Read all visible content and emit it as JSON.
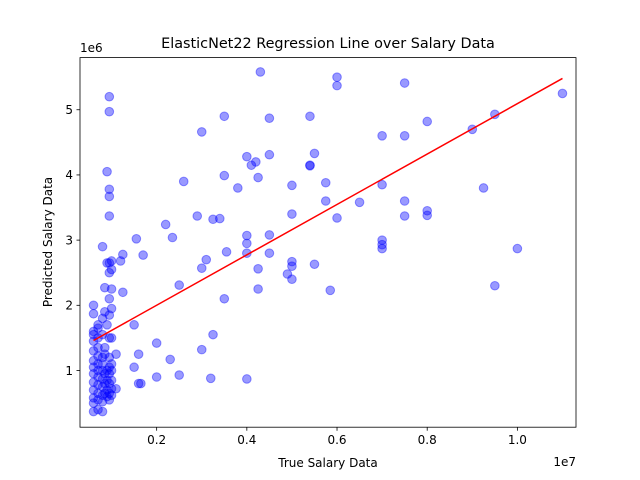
{
  "chart_data": {
    "type": "scatter",
    "title": "ElasticNet22 Regression Line over Salary Data",
    "xlabel": "True Salary Data",
    "ylabel": "Predicted Salary Data",
    "x_offset_label": "1e7",
    "y_offset_label": "1e6",
    "xlim": [
      0.03,
      1.13
    ],
    "ylim": [
      0.13,
      5.8
    ],
    "x_unit_note": "x values in units of 1e7",
    "y_unit_note": "y values in units of 1e6",
    "xticks": [
      0.2,
      0.4,
      0.6,
      0.8,
      1.0
    ],
    "xtick_labels": [
      "0.2",
      "0.4",
      "0.6",
      "0.8",
      "1.0"
    ],
    "yticks": [
      1,
      2,
      3,
      4,
      5
    ],
    "ytick_labels": [
      "1",
      "2",
      "3",
      "4",
      "5"
    ],
    "grid": false,
    "scatter_color": "#0000ff",
    "scatter_alpha": 0.4,
    "line_color": "#ff0000",
    "regression_line": {
      "x": [
        0.06,
        1.1
      ],
      "y": [
        1.46,
        5.48
      ]
    },
    "points": [
      [
        0.06,
        0.37
      ],
      [
        0.06,
        0.5
      ],
      [
        0.06,
        0.58
      ],
      [
        0.06,
        0.7
      ],
      [
        0.06,
        0.82
      ],
      [
        0.06,
        0.95
      ],
      [
        0.06,
        1.05
      ],
      [
        0.06,
        1.15
      ],
      [
        0.06,
        1.3
      ],
      [
        0.06,
        1.45
      ],
      [
        0.06,
        1.55
      ],
      [
        0.06,
        1.6
      ],
      [
        0.06,
        1.87
      ],
      [
        0.06,
        2.0
      ],
      [
        0.07,
        0.4
      ],
      [
        0.07,
        0.55
      ],
      [
        0.07,
        0.65
      ],
      [
        0.07,
        0.78
      ],
      [
        0.07,
        0.9
      ],
      [
        0.07,
        1.0
      ],
      [
        0.07,
        1.1
      ],
      [
        0.07,
        1.22
      ],
      [
        0.07,
        1.35
      ],
      [
        0.07,
        1.5
      ],
      [
        0.07,
        1.65
      ],
      [
        0.07,
        1.7
      ],
      [
        0.08,
        0.37
      ],
      [
        0.08,
        0.52
      ],
      [
        0.08,
        0.62
      ],
      [
        0.08,
        0.75
      ],
      [
        0.08,
        0.87
      ],
      [
        0.08,
        1.0
      ],
      [
        0.08,
        1.1
      ],
      [
        0.08,
        1.2
      ],
      [
        0.08,
        1.55
      ],
      [
        0.08,
        1.8
      ],
      [
        0.08,
        2.9
      ],
      [
        0.085,
        0.65
      ],
      [
        0.085,
        0.8
      ],
      [
        0.085,
        0.95
      ],
      [
        0.085,
        1.25
      ],
      [
        0.085,
        1.35
      ],
      [
        0.085,
        1.9
      ],
      [
        0.085,
        2.27
      ],
      [
        0.09,
        0.6
      ],
      [
        0.09,
        0.7
      ],
      [
        0.09,
        0.85
      ],
      [
        0.09,
        1.0
      ],
      [
        0.09,
        1.7
      ],
      [
        0.09,
        2.65
      ],
      [
        0.09,
        4.05
      ],
      [
        0.095,
        0.55
      ],
      [
        0.095,
        0.65
      ],
      [
        0.095,
        0.8
      ],
      [
        0.095,
        0.95
      ],
      [
        0.095,
        1.05
      ],
      [
        0.095,
        1.2
      ],
      [
        0.095,
        1.5
      ],
      [
        0.095,
        1.85
      ],
      [
        0.095,
        2.1
      ],
      [
        0.095,
        2.5
      ],
      [
        0.095,
        2.65
      ],
      [
        0.095,
        3.37
      ],
      [
        0.095,
        3.67
      ],
      [
        0.095,
        3.78
      ],
      [
        0.095,
        4.97
      ],
      [
        0.095,
        5.2
      ],
      [
        0.1,
        0.62
      ],
      [
        0.1,
        0.72
      ],
      [
        0.1,
        0.85
      ],
      [
        0.1,
        1.0
      ],
      [
        0.1,
        1.1
      ],
      [
        0.1,
        1.5
      ],
      [
        0.1,
        1.95
      ],
      [
        0.1,
        2.25
      ],
      [
        0.1,
        2.55
      ],
      [
        0.1,
        2.68
      ],
      [
        0.11,
        0.72
      ],
      [
        0.11,
        1.25
      ],
      [
        0.12,
        2.68
      ],
      [
        0.125,
        2.2
      ],
      [
        0.125,
        2.78
      ],
      [
        0.15,
        1.05
      ],
      [
        0.15,
        1.7
      ],
      [
        0.155,
        3.02
      ],
      [
        0.16,
        0.8
      ],
      [
        0.16,
        1.25
      ],
      [
        0.165,
        0.8
      ],
      [
        0.17,
        2.77
      ],
      [
        0.2,
        0.9
      ],
      [
        0.2,
        1.42
      ],
      [
        0.22,
        3.24
      ],
      [
        0.23,
        1.17
      ],
      [
        0.235,
        3.04
      ],
      [
        0.25,
        0.93
      ],
      [
        0.25,
        2.31
      ],
      [
        0.26,
        3.9
      ],
      [
        0.29,
        3.37
      ],
      [
        0.3,
        4.66
      ],
      [
        0.3,
        1.32
      ],
      [
        0.3,
        2.57
      ],
      [
        0.31,
        2.7
      ],
      [
        0.32,
        0.88
      ],
      [
        0.325,
        1.55
      ],
      [
        0.325,
        3.32
      ],
      [
        0.34,
        3.33
      ],
      [
        0.35,
        3.99
      ],
      [
        0.35,
        4.9
      ],
      [
        0.35,
        2.1
      ],
      [
        0.355,
        2.82
      ],
      [
        0.38,
        3.8
      ],
      [
        0.4,
        0.87
      ],
      [
        0.4,
        2.8
      ],
      [
        0.4,
        2.95
      ],
      [
        0.4,
        3.07
      ],
      [
        0.4,
        4.28
      ],
      [
        0.41,
        4.15
      ],
      [
        0.42,
        4.2
      ],
      [
        0.425,
        2.25
      ],
      [
        0.425,
        2.56
      ],
      [
        0.425,
        3.96
      ],
      [
        0.43,
        5.58
      ],
      [
        0.45,
        4.31
      ],
      [
        0.45,
        4.87
      ],
      [
        0.45,
        2.8
      ],
      [
        0.45,
        3.08
      ],
      [
        0.49,
        2.48
      ],
      [
        0.5,
        2.4
      ],
      [
        0.5,
        2.6
      ],
      [
        0.5,
        2.67
      ],
      [
        0.5,
        3.4
      ],
      [
        0.5,
        3.84
      ],
      [
        0.54,
        4.14
      ],
      [
        0.54,
        4.15
      ],
      [
        0.54,
        4.9
      ],
      [
        0.55,
        4.33
      ],
      [
        0.55,
        2.63
      ],
      [
        0.575,
        3.88
      ],
      [
        0.575,
        3.6
      ],
      [
        0.585,
        2.23
      ],
      [
        0.6,
        3.34
      ],
      [
        0.6,
        5.37
      ],
      [
        0.6,
        5.5
      ],
      [
        0.65,
        3.58
      ],
      [
        0.7,
        2.87
      ],
      [
        0.7,
        2.93
      ],
      [
        0.7,
        3.0
      ],
      [
        0.7,
        3.85
      ],
      [
        0.7,
        4.6
      ],
      [
        0.75,
        3.37
      ],
      [
        0.75,
        3.6
      ],
      [
        0.75,
        4.6
      ],
      [
        0.75,
        5.41
      ],
      [
        0.8,
        3.38
      ],
      [
        0.8,
        3.45
      ],
      [
        0.8,
        4.82
      ],
      [
        0.9,
        4.7
      ],
      [
        0.925,
        3.8
      ],
      [
        0.95,
        2.3
      ],
      [
        0.95,
        4.93
      ],
      [
        1.0,
        2.87
      ],
      [
        1.1,
        5.25
      ]
    ]
  }
}
